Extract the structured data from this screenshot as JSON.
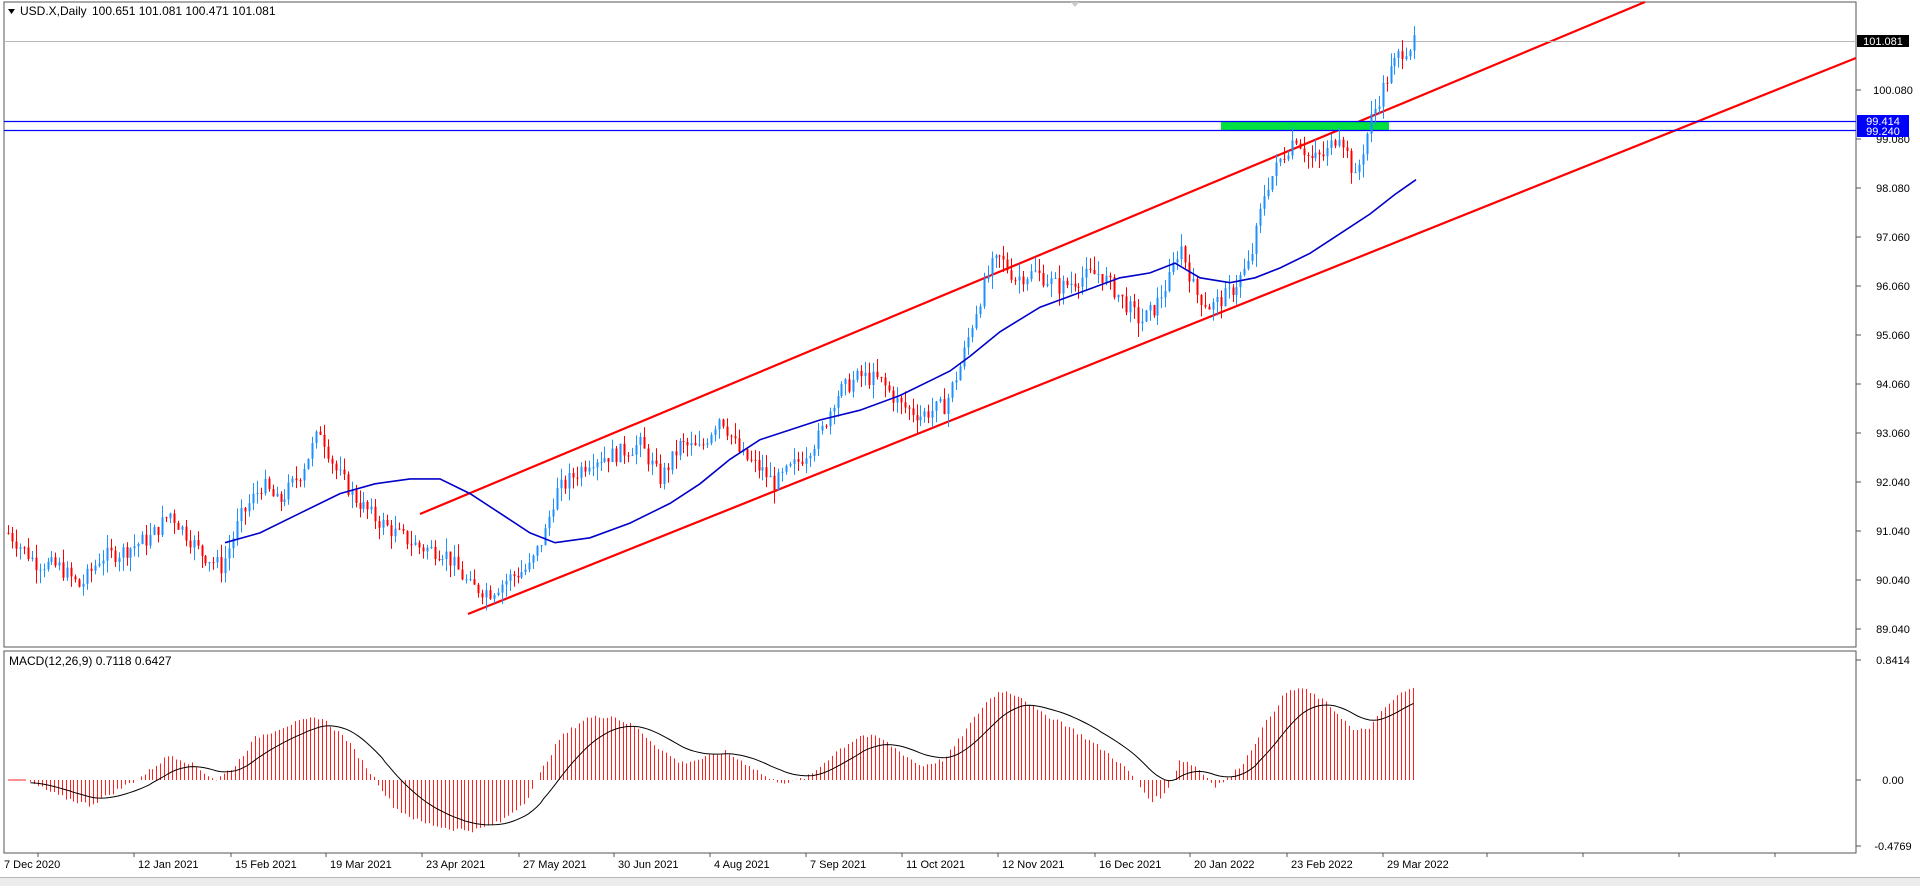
{
  "main_chart": {
    "symbol_label": "USD.X,Daily",
    "ohlc_label": "100.651 101.081 100.471 101.081",
    "menu_icon": "triangle-down-icon",
    "price_ticks": [
      "100.080",
      "99.080",
      "98.080",
      "97.060",
      "96.060",
      "95.060",
      "94.060",
      "93.060",
      "92.040",
      "91.040",
      "90.040",
      "89.040"
    ],
    "current_price_label": "101.081",
    "level_upper_label": "99.414",
    "level_lower_label": "99.240",
    "colors": {
      "bull_candle": "#1e90ff",
      "bear_candle": "#ff0000",
      "moving_average": "#0000c8",
      "trend_channel": "#ff0000",
      "horizontal_levels": "#0000ff",
      "zone_highlight": "#00e040",
      "price_tag_bg": "#000000"
    }
  },
  "macd_panel": {
    "label": "MACD(12,26,9) 0.7118 0.6427",
    "ticks": [
      "0.8414",
      "0.00",
      "-0.4769"
    ],
    "colors": {
      "histogram": "#ff2020",
      "signal": "#000000"
    }
  },
  "time_axis": {
    "labels": [
      "7 Dec 2020",
      "12 Jan 2021",
      "15 Feb 2021",
      "19 Mar 2021",
      "23 Apr 2021",
      "27 May 2021",
      "30 Jun 2021",
      "4 Aug 2021",
      "7 Sep 2021",
      "11 Oct 2021",
      "12 Nov 2021",
      "16 Dec 2021",
      "20 Jan 2022",
      "23 Feb 2022",
      "29 Mar 2022"
    ]
  }
}
